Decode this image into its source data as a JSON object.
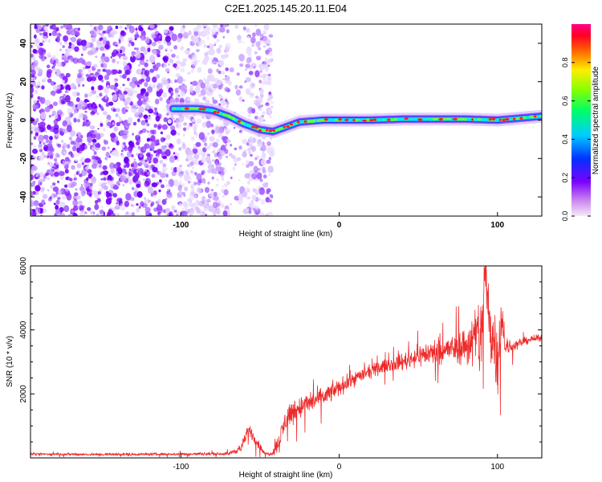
{
  "figure": {
    "title": "C2E1.2025.145.20.11.E04"
  },
  "chart_data": [
    {
      "type": "heatmap",
      "xlabel": "Height of straight line (km)",
      "ylabel": "Frequency (Hz)",
      "xlim": [
        -195,
        128
      ],
      "ylim": [
        -50,
        50
      ],
      "x_ticks": [
        -100,
        0,
        100
      ],
      "x_tick_labels": [
        "-100",
        "0",
        "100"
      ],
      "y_ticks": [
        -40,
        -20,
        0,
        20,
        40
      ],
      "y_tick_labels": [
        "-40",
        "-20",
        "0",
        "20",
        "40"
      ],
      "colorbar": {
        "label": "Normalized spectral amplitude",
        "range": [
          0,
          1
        ],
        "ticks": [
          0.0,
          0.2,
          0.4,
          0.6,
          0.8
        ],
        "tick_labels": [
          "0.0",
          "0.2",
          "0.4",
          "0.6",
          "0.8"
        ],
        "colormap": "rainbow (white-purple-blue-cyan-green-yellow-red-magenta)"
      },
      "signal_ridge": {
        "description": "Bright narrow frequency line near 0 Hz emerging around -100 km",
        "x": [
          -105,
          -90,
          -80,
          -70,
          -60,
          -50,
          -42,
          -35,
          -25,
          -10,
          0,
          20,
          40,
          60,
          80,
          100,
          128
        ],
        "frequency": [
          6,
          6,
          5,
          2,
          -2,
          -5,
          -6,
          -4,
          -1,
          0,
          0,
          0,
          0.5,
          0.5,
          0.5,
          0,
          2
        ]
      },
      "noise_region": {
        "x_range": [
          -195,
          -42
        ],
        "frequency_range": [
          -50,
          50
        ],
        "gap_x_range": [
          -70,
          -58
        ]
      }
    },
    {
      "type": "line",
      "xlabel": "Height of straight line (km)",
      "ylabel": "SNR (10 * v/v)",
      "xlim": [
        -195,
        128
      ],
      "ylim": [
        0,
        6000
      ],
      "x_ticks": [
        -100,
        0,
        100
      ],
      "x_tick_labels": [
        "-100",
        "0",
        "100"
      ],
      "y_ticks": [
        2000,
        4000,
        6000
      ],
      "y_tick_labels": [
        "2000",
        "4000",
        "6000"
      ],
      "color": "#ee2a2a",
      "series": [
        {
          "x": [
            -195,
            -150,
            -100,
            -70,
            -62,
            -57,
            -52,
            -47,
            -42,
            -38,
            -33,
            -28,
            -20,
            -10,
            0,
            10,
            20,
            30,
            40,
            50,
            60,
            70,
            80,
            85,
            90,
            92,
            95,
            100,
            103,
            105,
            110,
            115,
            120,
            128
          ],
          "values": [
            120,
            110,
            120,
            130,
            300,
            900,
            500,
            120,
            150,
            500,
            1300,
            1500,
            1700,
            1900,
            2200,
            2500,
            2700,
            2900,
            3000,
            3200,
            3300,
            3400,
            3500,
            3700,
            3900,
            5900,
            4200,
            3200,
            4500,
            3400,
            3500,
            3600,
            3700,
            3750
          ],
          "spread": [
            60,
            60,
            60,
            70,
            200,
            300,
            250,
            80,
            100,
            500,
            600,
            550,
            500,
            450,
            400,
            350,
            300,
            300,
            400,
            500,
            600,
            600,
            900,
            1400,
            2200,
            1200,
            1800,
            1800,
            1000,
            500,
            250,
            200,
            180,
            150
          ]
        }
      ]
    }
  ]
}
